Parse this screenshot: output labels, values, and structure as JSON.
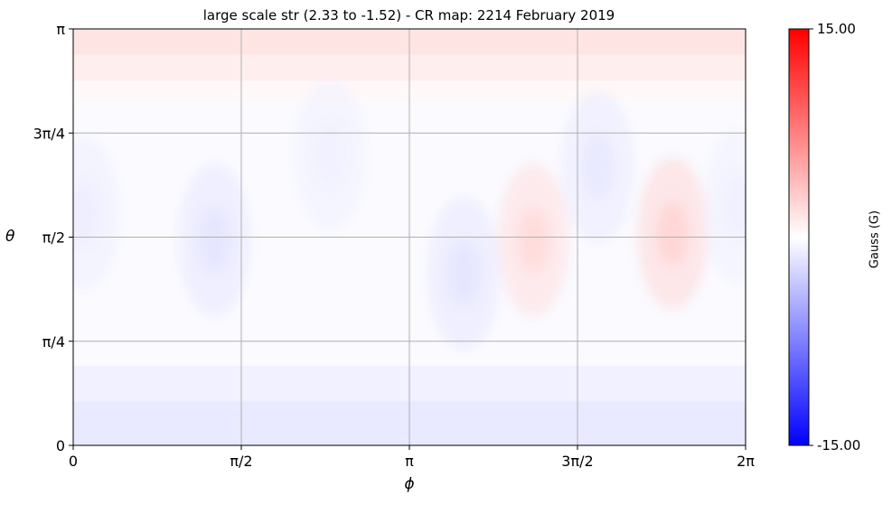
{
  "chart_data": {
    "type": "heatmap",
    "title": "large scale str (2.33 to -1.52) - CR map: 2214 February 2019",
    "xlabel": "ϕ",
    "ylabel": "θ",
    "xticks": [
      "0",
      "π/2",
      "π",
      "3π/2",
      "2π"
    ],
    "yticks": [
      "0",
      "π/4",
      "π/2",
      "3π/4",
      "π"
    ],
    "xlim": [
      0,
      6.283
    ],
    "ylim": [
      0,
      3.1416
    ],
    "grid": true,
    "colorbar": {
      "label": "Gauss (G)",
      "max_label": "15.00",
      "min_label": "-15.00",
      "vmin": -15,
      "vmax": 15,
      "colormap": "bwr",
      "colors": {
        "max": "#ff0000",
        "mid": "#ffffff",
        "min": "#0000ff"
      }
    },
    "field_range": {
      "max": 2.33,
      "min": -1.52
    },
    "bands": [
      {
        "theta_min": 0.0,
        "theta_max": 0.33,
        "value": -1.3
      },
      {
        "theta_min": 0.33,
        "theta_max": 0.6,
        "value": -0.8
      },
      {
        "theta_min": 0.6,
        "theta_max": 2.6,
        "value": -0.3
      },
      {
        "theta_min": 2.6,
        "theta_max": 2.75,
        "value": 0.4
      },
      {
        "theta_min": 2.75,
        "theta_max": 2.95,
        "value": 1.0
      },
      {
        "theta_min": 2.95,
        "theta_max": 3.1416,
        "value": 1.6
      }
    ],
    "features": [
      {
        "phi": 0.1,
        "theta": 1.75,
        "value": -1.0
      },
      {
        "phi": 1.32,
        "theta": 1.55,
        "value": -1.5
      },
      {
        "phi": 2.4,
        "theta": 2.2,
        "value": -0.8
      },
      {
        "phi": 3.65,
        "theta": 1.3,
        "value": -1.5
      },
      {
        "phi": 4.3,
        "theta": 1.55,
        "value": 2.0
      },
      {
        "phi": 4.9,
        "theta": 2.1,
        "value": -1.3
      },
      {
        "phi": 5.6,
        "theta": 1.6,
        "value": 2.33
      },
      {
        "phi": 6.22,
        "theta": 1.8,
        "value": -0.9
      }
    ]
  }
}
